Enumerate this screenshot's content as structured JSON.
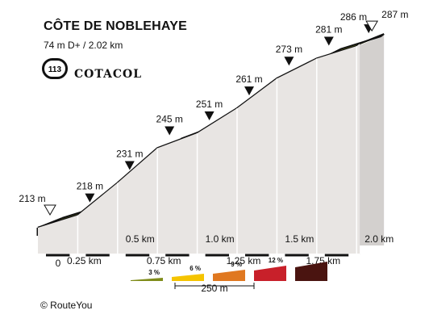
{
  "header": {
    "title": "CÔTE DE NOBLEHAYE",
    "subtitle": "74 m D+ / 2.02 km",
    "badge_number": "113",
    "brand": "COTACOL"
  },
  "footer": {
    "credit": "© RouteYou"
  },
  "legend": {
    "items": [
      {
        "label": "3 %",
        "color": "#7f8c1a"
      },
      {
        "label": "6 %",
        "color": "#f5c400"
      },
      {
        "label": "9 %",
        "color": "#e07820"
      },
      {
        "label": "12 %",
        "color": "#c8202a"
      },
      {
        "label": "",
        "color": "#4a1410"
      }
    ],
    "scale_label": "250 m"
  },
  "chart_data": {
    "type": "area",
    "title": "CÔTE DE NOBLEHAYE",
    "x_unit": "km",
    "xlim": [
      0,
      2.02
    ],
    "x_ticks": [
      "0",
      "0.25 km",
      "0.5 km",
      "0.75 km",
      "1.0 km",
      "1.25 km",
      "1.5 km",
      "1.75 km",
      "2.0 km"
    ],
    "x_tick_values": [
      0,
      0.25,
      0.5,
      0.75,
      1.0,
      1.25,
      1.5,
      1.75,
      2.0
    ],
    "points": [
      {
        "x": 0,
        "y": 213,
        "label": "213 m",
        "marker": "start"
      },
      {
        "x": 0.25,
        "y": 218,
        "label": "218 m",
        "marker": "point"
      },
      {
        "x": 0.5,
        "y": 231,
        "label": "231 m",
        "marker": "point"
      },
      {
        "x": 0.75,
        "y": 245,
        "label": "245 m",
        "marker": "point"
      },
      {
        "x": 1.0,
        "y": 251,
        "label": "251 m",
        "marker": "point"
      },
      {
        "x": 1.25,
        "y": 261,
        "label": "261 m",
        "marker": "point"
      },
      {
        "x": 1.5,
        "y": 273,
        "label": "273 m",
        "marker": "point"
      },
      {
        "x": 1.75,
        "y": 281,
        "label": "281 m",
        "marker": "point"
      },
      {
        "x": 2.0,
        "y": 286,
        "label": "286 m",
        "marker": "point"
      },
      {
        "x": 2.02,
        "y": 287,
        "label": "287 m",
        "marker": "end"
      }
    ],
    "segment_colors": [
      "#7f8c1a",
      "#f5c400",
      "#f5c400",
      "#7f8c1a",
      "#f5c400",
      "#f5c400",
      "#f5c400",
      "#7f8c1a",
      "#7f8c1a"
    ],
    "grid": true
  }
}
